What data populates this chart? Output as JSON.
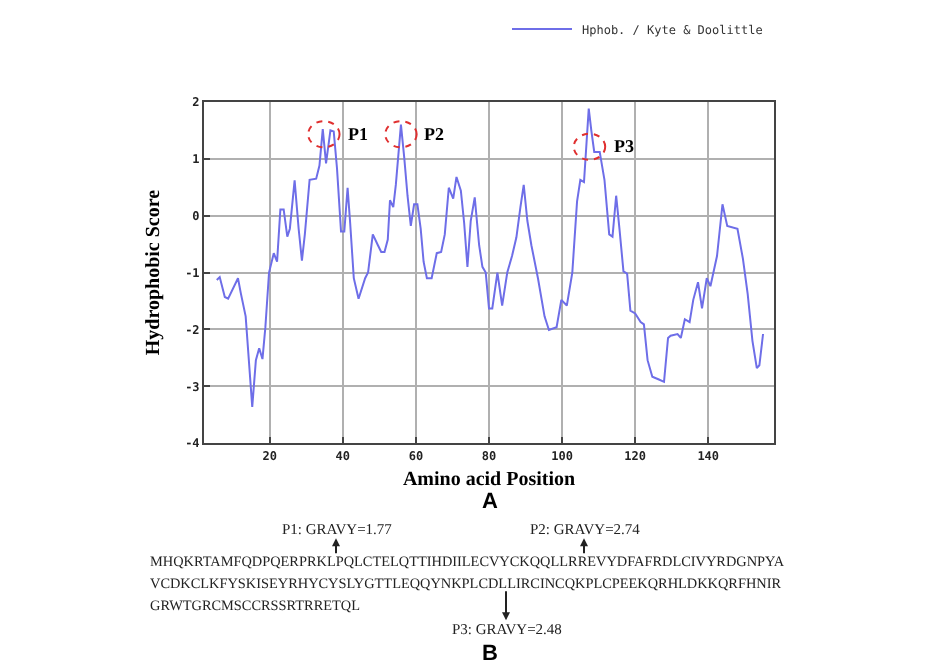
{
  "chart_data": {
    "type": "line",
    "xlabel": "Amino acid Position",
    "ylabel": "Hydrophobic Score",
    "xlim": [
      2,
      158
    ],
    "ylim": [
      -4,
      2
    ],
    "xticks": [
      20,
      40,
      60,
      80,
      100,
      120,
      140
    ],
    "yticks": [
      -4,
      -3,
      -2,
      -1,
      0,
      1,
      2
    ],
    "grid": true,
    "legend": "top right",
    "marker": "none",
    "line_style": "solid",
    "series": [
      {
        "name": "Hphob. / Kyte & Doolittle",
        "color": "#6e6ee8",
        "x": [
          5.5,
          6.3,
          7.7,
          8.6,
          11.3,
          12.1,
          13.4,
          15.2,
          16.2,
          17.1,
          18,
          18.8,
          19.8,
          21.1,
          22,
          22.9,
          23.8,
          24.8,
          25.5,
          26.8,
          27.9,
          28.8,
          29.6,
          30.9,
          32.7,
          33.6,
          34.5,
          35.4,
          36.6,
          37.5,
          38.4,
          39.5,
          40.4,
          41.3,
          42,
          43,
          44.3,
          46.1,
          46.9,
          48.2,
          49.6,
          50.5,
          51.4,
          52.3,
          52.9,
          53.8,
          54.5,
          55.9,
          56.8,
          57.7,
          58.6,
          59.5,
          60.4,
          61.3,
          62.1,
          63,
          64.3,
          65.7,
          66.9,
          67.9,
          69,
          70.2,
          71.1,
          72.3,
          73.2,
          74.1,
          75,
          76.1,
          77.3,
          78.2,
          79.1,
          80,
          80.9,
          82.3,
          83.6,
          85,
          86.3,
          87.5,
          88.6,
          89.5,
          90.5,
          91.6,
          93.4,
          95.2,
          96.4,
          98.5,
          99.8,
          101.3,
          102.8,
          104.1,
          105,
          106,
          107.3,
          108,
          108.8,
          110.3,
          111.6,
          112.9,
          113.8,
          114.8,
          115.7,
          116.8,
          117.8,
          118.7,
          120,
          121.5,
          122.4,
          123.4,
          124.7,
          126.5,
          127.9,
          129,
          129.7,
          131.6,
          132.5,
          133.6,
          134.9,
          135.9,
          137.2,
          138.3,
          139.6,
          140.6,
          142.4,
          143.9,
          145.2,
          148,
          149.5,
          150.8,
          152.1,
          153.3,
          154,
          155
        ],
        "values": [
          -1.13,
          -1.08,
          -1.43,
          -1.46,
          -1.1,
          -1.37,
          -1.77,
          -3.36,
          -2.54,
          -2.33,
          -2.52,
          -1.96,
          -1.0,
          -0.66,
          -0.81,
          0.11,
          0.11,
          -0.37,
          -0.23,
          0.62,
          -0.23,
          -0.79,
          -0.33,
          0.63,
          0.65,
          0.88,
          1.52,
          0.92,
          1.5,
          1.48,
          0.83,
          -0.28,
          -0.28,
          0.49,
          -0.13,
          -1.1,
          -1.46,
          -1.1,
          -1.0,
          -0.33,
          -0.52,
          -0.64,
          -0.64,
          -0.42,
          0.27,
          0.15,
          0.54,
          1.6,
          1.02,
          0.35,
          -0.18,
          0.2,
          0.2,
          -0.23,
          -0.81,
          -1.1,
          -1.1,
          -0.66,
          -0.64,
          -0.33,
          0.49,
          0.3,
          0.68,
          0.44,
          -0.13,
          -0.9,
          -0.09,
          0.32,
          -0.52,
          -0.9,
          -1.0,
          -1.63,
          -1.63,
          -1.0,
          -1.58,
          -1.0,
          -0.71,
          -0.38,
          0.15,
          0.54,
          -0.09,
          -0.52,
          -1.1,
          -1.77,
          -2.01,
          -1.96,
          -1.48,
          -1.58,
          -1.0,
          0.25,
          0.63,
          0.59,
          1.88,
          1.5,
          1.12,
          1.12,
          0.63,
          -0.33,
          -0.37,
          0.35,
          -0.23,
          -0.98,
          -1.02,
          -1.67,
          -1.72,
          -1.87,
          -1.91,
          -2.54,
          -2.83,
          -2.88,
          -2.92,
          -2.15,
          -2.11,
          -2.08,
          -2.15,
          -1.82,
          -1.87,
          -1.48,
          -1.17,
          -1.63,
          -1.1,
          -1.24,
          -0.71,
          0.2,
          -0.18,
          -0.23,
          -0.76,
          -1.38,
          -2.2,
          -2.68,
          -2.63,
          -2.08
        ]
      }
    ],
    "annotations": [
      {
        "text": "P1",
        "x": 34.8,
        "y": 1.43
      },
      {
        "text": "P2",
        "x": 55.9,
        "y": 1.43
      },
      {
        "text": "P3",
        "x": 107.5,
        "y": 1.21
      },
      "A",
      "P1: GRAVY=1.77",
      "P2: GRAVY=2.74",
      "MHQKRTAMFQDPQERPRKLPQLCTELQTTIHDIILECVYCKQQLLRREVYDFAFRDLCIVYRDGNPYA",
      "VCDKCLKFYSKISEYRHYCYSLYGTTLEQQYNKPLCDLLIRCINCQKPLCPEEKQRHLDKKQRFHNIR",
      "GRWTGRCMSCCRSSRTRRETQL",
      "P3: GRAVY=2.48",
      "B"
    ]
  }
}
